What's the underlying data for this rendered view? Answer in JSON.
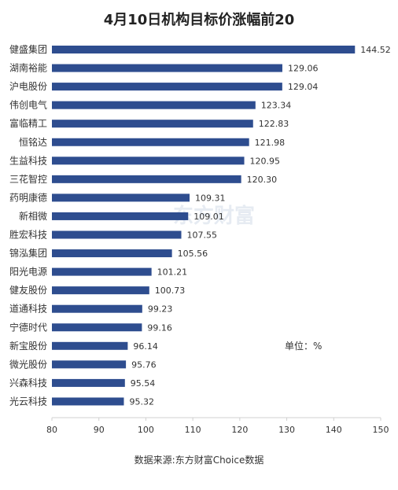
{
  "chart_data": {
    "type": "bar",
    "orientation": "horizontal",
    "title": "4月10日机构目标价涨幅前20",
    "categories": [
      "健盛集团",
      "湖南裕能",
      "沪电股份",
      "伟创电气",
      "富临精工",
      "恒铭达",
      "生益科技",
      "三花智控",
      "药明康德",
      "新相微",
      "胜宏科技",
      "锦泓集团",
      "阳光电源",
      "健友股份",
      "道通科技",
      "宁德时代",
      "新宝股份",
      "微光股份",
      "兴森科技",
      "光云科技"
    ],
    "values": [
      144.52,
      129.06,
      129.04,
      123.34,
      122.83,
      121.98,
      120.95,
      120.3,
      109.31,
      109.01,
      107.55,
      105.56,
      101.21,
      100.73,
      99.23,
      99.16,
      96.14,
      95.76,
      95.54,
      95.32
    ],
    "value_labels": [
      "144.52",
      "129.06",
      "129.04",
      "123.34",
      "122.83",
      "121.98",
      "120.95",
      "120.30",
      "109.31",
      "109.01",
      "107.55",
      "105.56",
      "101.21",
      "100.73",
      "99.23",
      "99.16",
      "96.14",
      "95.76",
      "95.54",
      "95.32"
    ],
    "xlim": [
      80,
      150
    ],
    "xticks": [
      "80",
      "90",
      "100",
      "110",
      "120",
      "130",
      "140",
      "150"
    ],
    "grid": false,
    "bar_color": "#2e4d8f",
    "unit": "单位：%",
    "source": "数据来源:东方财富Choice数据",
    "watermark": "东方财富"
  }
}
